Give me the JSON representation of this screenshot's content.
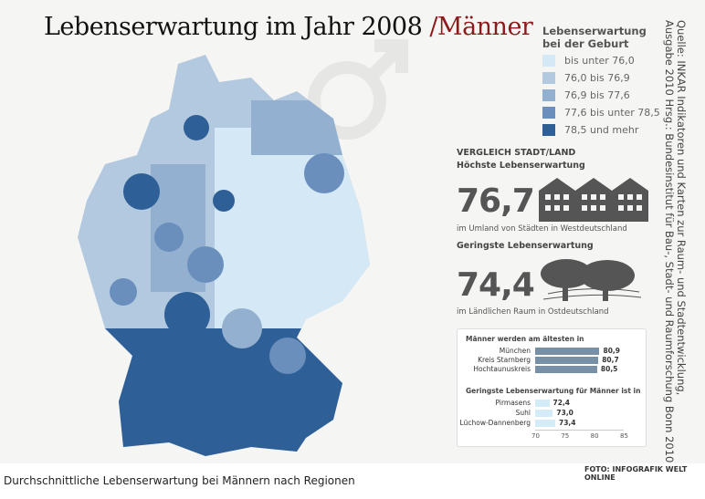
{
  "title": {
    "main": "Lebenserwartung im Jahr 2008 ",
    "sub": "/Männer"
  },
  "legend": {
    "title_line1": "Lebenserwartung",
    "title_line2": "bei der Geburt",
    "items": [
      {
        "label": "bis unter 76,0",
        "color": "#d4e9f5"
      },
      {
        "label": "76,0 bis 76,9",
        "color": "#b3c9df"
      },
      {
        "label": "76,9 bis 77,6",
        "color": "#93b0d0"
      },
      {
        "label": "77,6 bis unter 78,5",
        "color": "#6a8fbd"
      },
      {
        "label": "78,5 und mehr",
        "color": "#2e5f96"
      }
    ]
  },
  "source": {
    "line1": "Quelle: INKAR Indikatoren und Karten zur Raum- und Stadtentwicklung,",
    "line2": "Ausgabe 2010 Hrsg.: Bundesinstitut für Bau-, Stadt- und Raumforschung Bonn 2010"
  },
  "comparison": {
    "heading": "VERGLEICH STADT/LAND",
    "highest_label": "Höchste Lebenserwartung",
    "highest_value": "76,7",
    "highest_note": "im Umland von Städten in Westdeutschland",
    "lowest_label": "Geringste Lebenserwartung",
    "lowest_value": "74,4",
    "lowest_note": "im Ländlichen Raum in Ostdeutschland"
  },
  "chart_data": {
    "type": "bar",
    "orientation": "horizontal",
    "xlim": [
      70,
      85
    ],
    "ticks": [
      "70",
      "75",
      "80",
      "85"
    ],
    "groups": [
      {
        "title": "Männer werden am ältesten in",
        "color": "#7890a6",
        "categories": [
          "München",
          "Kreis Starnberg",
          "Hochtaunuskreis"
        ],
        "values": [
          80.9,
          80.7,
          80.5
        ],
        "labels": [
          "80,9",
          "80,7",
          "80,5"
        ]
      },
      {
        "title": "Geringste Lebenserwartung für Männer ist in",
        "color": "#d4ecf7",
        "categories": [
          "Pirmasens",
          "Suhl",
          "Lüchow-Dannenberg"
        ],
        "values": [
          72.4,
          73.0,
          73.4
        ],
        "labels": [
          "72,4",
          "73,0",
          "73,4"
        ]
      }
    ]
  },
  "caption": "Durchschnittliche Lebenserwartung bei Männern nach Regionen",
  "credit": "FOTO: INFOGRAFIK WELT ONLINE"
}
